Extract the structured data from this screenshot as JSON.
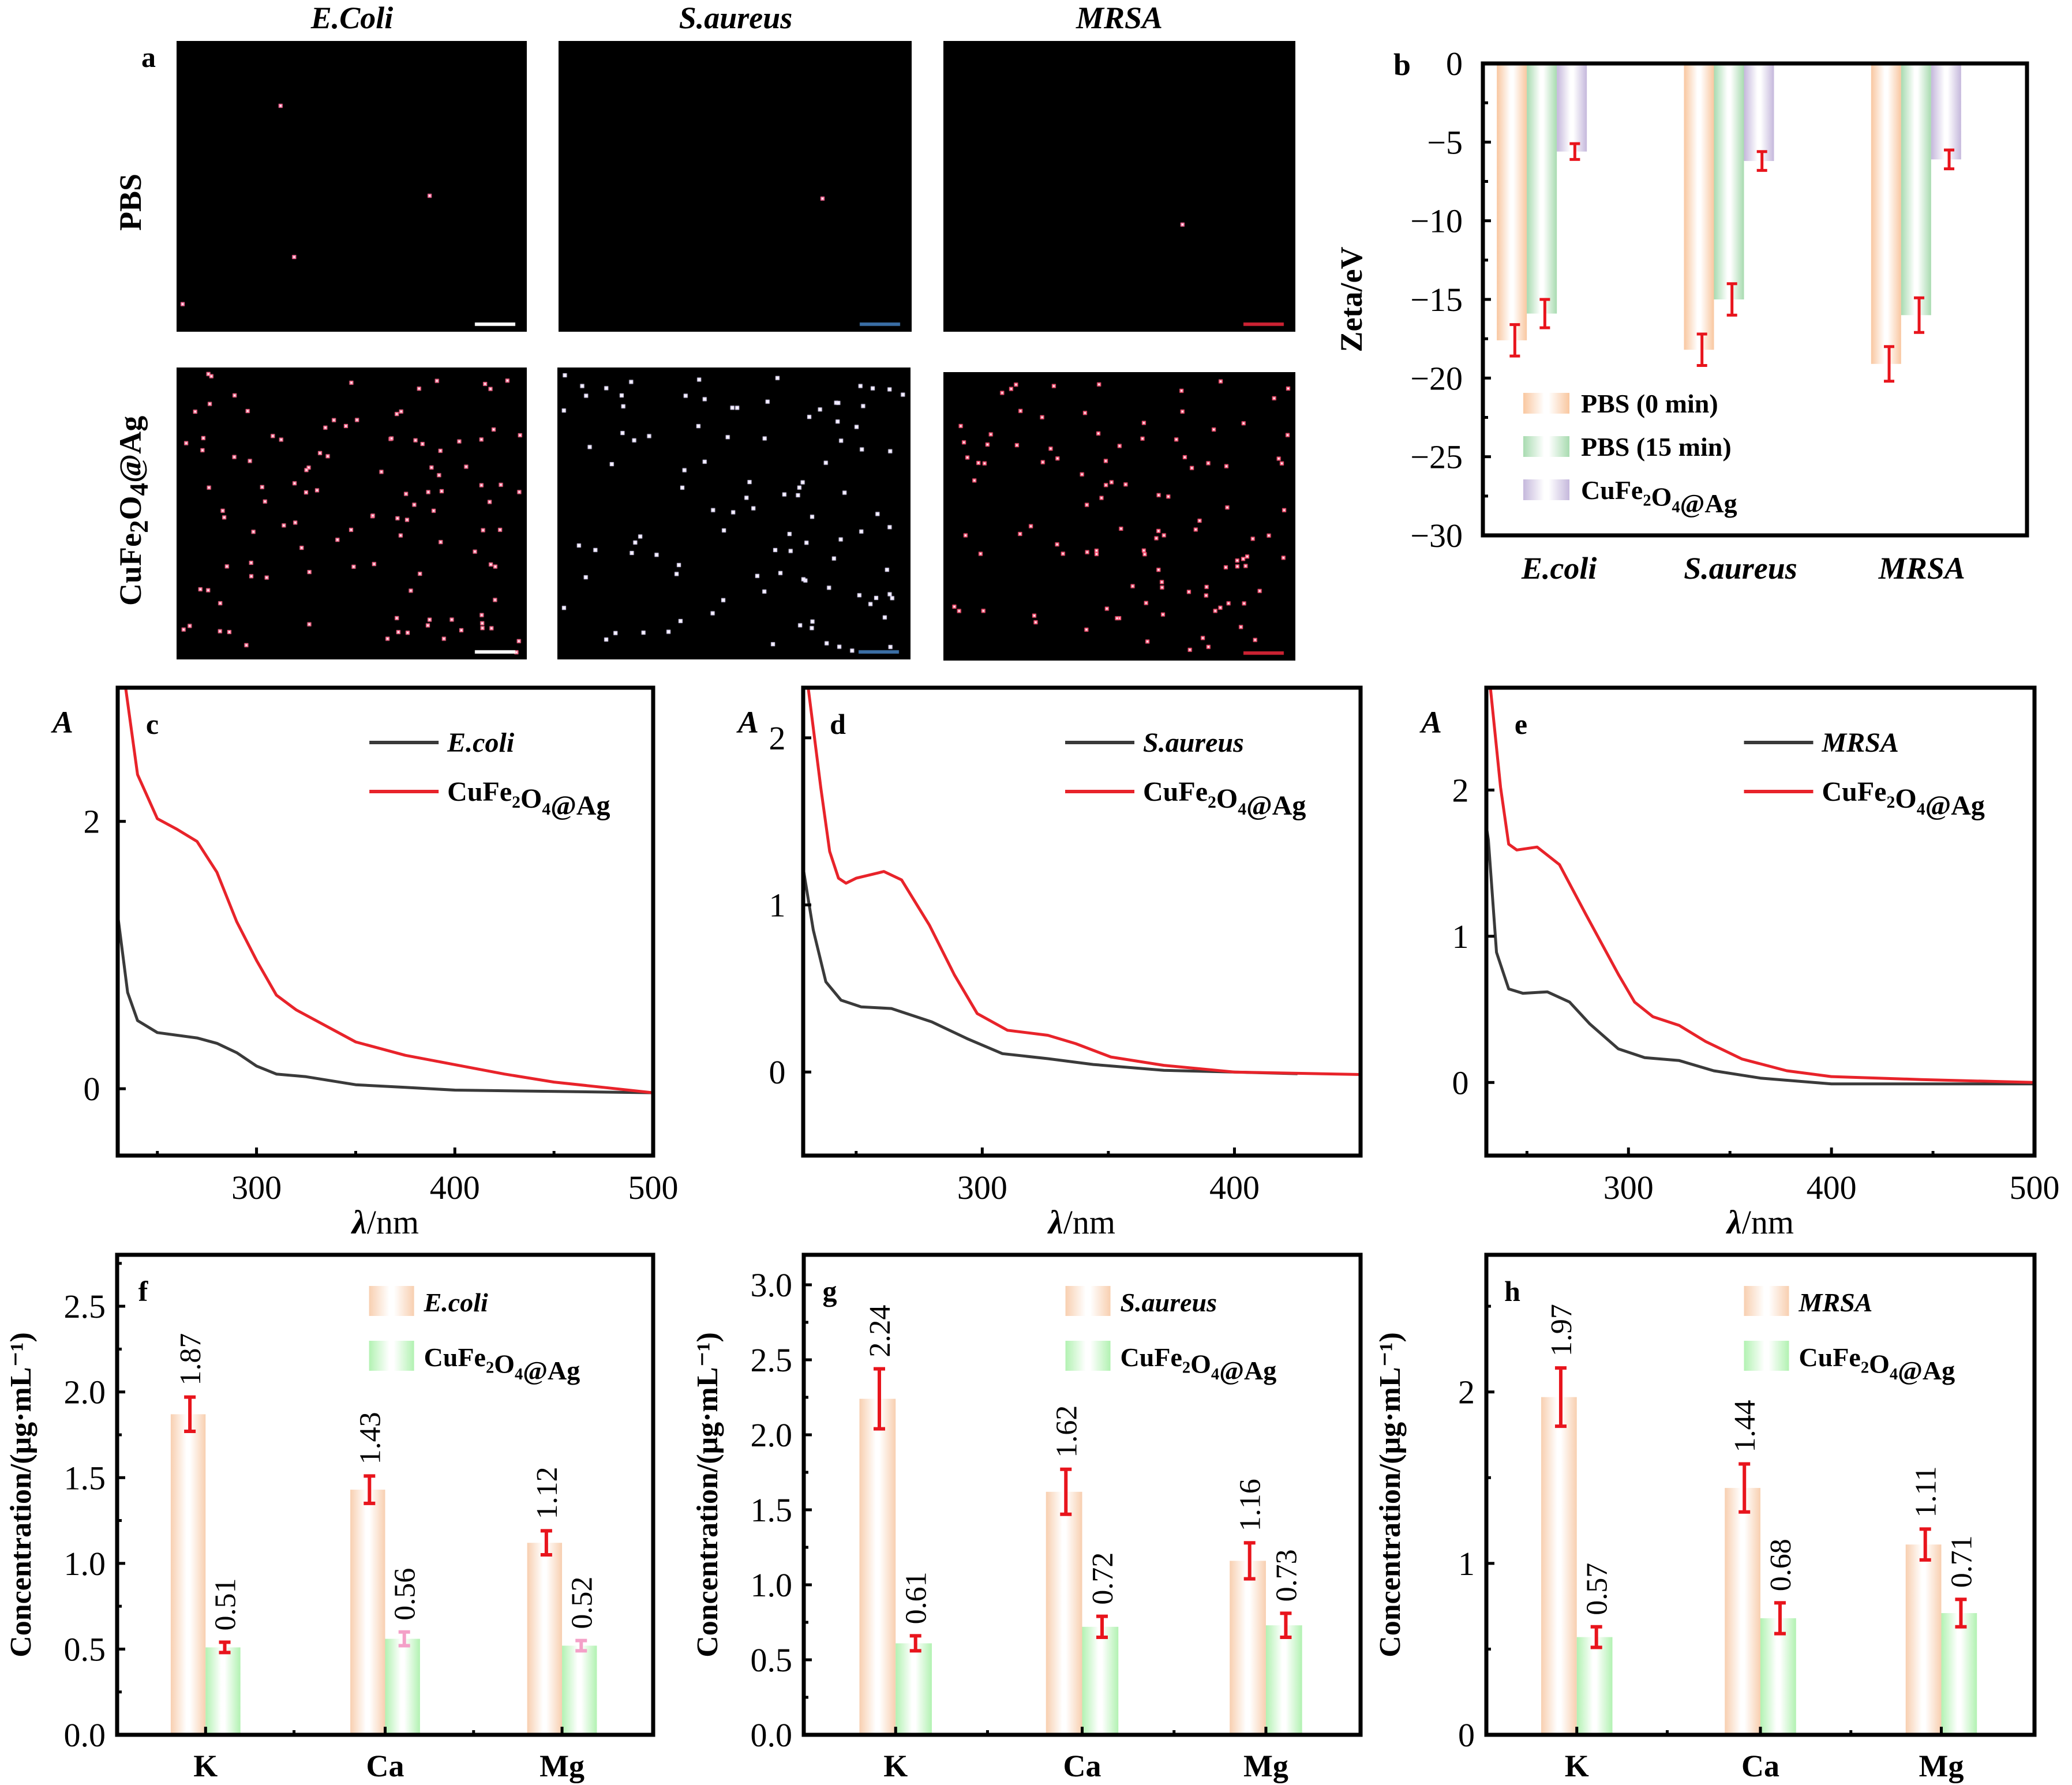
{
  "panel_a": {
    "label": "a",
    "columns": [
      "E.Coli",
      "S.aureus",
      "MRSA"
    ],
    "rows": [
      "PBS",
      "CuFe2O4@Ag"
    ],
    "row_label_html": [
      "PBS",
      "CuFe<sub>2</sub>O<sub>4</sub>@Ag"
    ],
    "cell_density": [
      [
        4,
        1,
        1
      ],
      [
        110,
        100,
        105
      ]
    ],
    "cell_colors": [
      [
        "#ff6b9b",
        "#ff6b9b",
        "#ff6b9b"
      ],
      [
        "#ff6b8f",
        "#e8e0ff",
        "#ff5577"
      ]
    ],
    "scale_bar_color": [
      "#ffffff",
      "#3a6ea5",
      "#cc2233"
    ]
  },
  "chart_data": [
    {
      "panel": "b",
      "type": "bar",
      "title": "",
      "xlabel": "",
      "ylabel": "Zeta/eV",
      "ylim": [
        -30,
        0
      ],
      "yticks": [
        0,
        -5,
        -10,
        -15,
        -20,
        -25,
        -30
      ],
      "ytick_labels": [
        "0",
        "−5",
        "−10",
        "−15",
        "−20",
        "−25",
        "−30"
      ],
      "categories": [
        "E.coli",
        "S.aureus",
        "MRSA"
      ],
      "series": [
        {
          "name": "PBS (0 min)",
          "color": "#f9c7a0",
          "values": [
            -17.6,
            -18.2,
            -19.1
          ],
          "err": [
            1.0,
            1.0,
            1.1
          ]
        },
        {
          "name": "PBS (15 min)",
          "color": "#a8dbb0",
          "values": [
            -15.9,
            -15.0,
            -16.0
          ],
          "err": [
            0.9,
            1.0,
            1.1
          ]
        },
        {
          "name": "CuFe2O4@Ag",
          "color": "#c5b8dc",
          "values": [
            -5.6,
            -6.2,
            -6.1
          ],
          "err": [
            0.5,
            0.6,
            0.6
          ]
        }
      ],
      "legend": "bottom-left",
      "error_color": "#e8141c"
    },
    {
      "panel": "c",
      "type": "line",
      "xlabel": "λ/nm",
      "ylabel": "A",
      "xlim": [
        230,
        500
      ],
      "ylim": [
        -0.5,
        3.0
      ],
      "xticks": [
        300,
        400,
        500
      ],
      "yticks": [
        0,
        2
      ],
      "legend": "top-right",
      "series": [
        {
          "name": "E.coli",
          "color": "#3a3a3a",
          "x": [
            230,
            235,
            240,
            250,
            270,
            280,
            290,
            300,
            310,
            325,
            350,
            375,
            400,
            450,
            500
          ],
          "y": [
            1.3,
            0.72,
            0.51,
            0.42,
            0.38,
            0.34,
            0.27,
            0.17,
            0.11,
            0.09,
            0.03,
            0.01,
            -0.01,
            -0.02,
            -0.03
          ]
        },
        {
          "name": "CuFe2O4@Ag",
          "color": "#e8232a",
          "x": [
            234,
            240,
            250,
            260,
            270,
            280,
            290,
            300,
            310,
            320,
            340,
            350,
            375,
            400,
            425,
            450,
            475,
            500
          ],
          "y": [
            3.0,
            2.35,
            2.02,
            1.94,
            1.85,
            1.62,
            1.25,
            0.96,
            0.7,
            0.59,
            0.43,
            0.35,
            0.25,
            0.18,
            0.11,
            0.05,
            0.01,
            -0.03
          ]
        }
      ]
    },
    {
      "panel": "d",
      "type": "line",
      "xlabel": "λ/nm",
      "ylabel": "A",
      "xlim": [
        229,
        450
      ],
      "ylim": [
        -0.5,
        2.3
      ],
      "xticks": [
        300,
        400
      ],
      "yticks": [
        0,
        1,
        2
      ],
      "legend": "top-right",
      "series": [
        {
          "name": "S.aureus",
          "color": "#3a3a3a",
          "x": [
            229,
            233,
            238,
            244,
            252,
            264,
            280,
            294,
            308,
            326,
            344,
            372,
            400,
            425
          ],
          "y": [
            1.22,
            0.85,
            0.54,
            0.43,
            0.39,
            0.38,
            0.3,
            0.2,
            0.11,
            0.08,
            0.045,
            0.01,
            0.0,
            -0.01
          ]
        },
        {
          "name": "CuFe2O4@Ag",
          "color": "#e8232a",
          "x": [
            231,
            236,
            239.5,
            243,
            246,
            250,
            261,
            268,
            279,
            289,
            298,
            310,
            326,
            337,
            351,
            372,
            400,
            450
          ],
          "y": [
            2.3,
            1.7,
            1.32,
            1.16,
            1.13,
            1.16,
            1.2,
            1.15,
            0.88,
            0.58,
            0.35,
            0.25,
            0.22,
            0.17,
            0.09,
            0.04,
            0.0,
            -0.015
          ]
        }
      ]
    },
    {
      "panel": "e",
      "type": "line",
      "xlabel": "λ/nm",
      "ylabel": "A",
      "xlim": [
        230,
        500
      ],
      "ylim": [
        -0.5,
        2.7
      ],
      "xticks": [
        300,
        400,
        500
      ],
      "yticks": [
        0,
        1,
        2
      ],
      "legend": "top-right",
      "series": [
        {
          "name": "MRSA",
          "color": "#3a3a3a",
          "x": [
            230,
            231,
            235,
            241,
            248,
            260,
            271,
            281,
            295,
            308,
            325,
            342,
            365,
            400,
            500
          ],
          "y": [
            1.75,
            1.66,
            0.89,
            0.64,
            0.61,
            0.62,
            0.55,
            0.4,
            0.23,
            0.17,
            0.15,
            0.08,
            0.03,
            -0.01,
            -0.01
          ]
        },
        {
          "name": "CuFe2O4@Ag",
          "color": "#e8232a",
          "x": [
            232,
            237,
            241,
            245,
            255,
            266,
            279,
            295,
            303,
            312,
            325,
            338,
            356,
            378,
            400,
            444,
            500
          ],
          "y": [
            2.7,
            2.02,
            1.63,
            1.59,
            1.61,
            1.49,
            1.15,
            0.74,
            0.55,
            0.45,
            0.39,
            0.28,
            0.16,
            0.08,
            0.04,
            0.02,
            0.0
          ]
        }
      ]
    },
    {
      "panel": "f",
      "type": "bar",
      "ylabel": "Concentration/(μg·mL⁻¹)",
      "ylim": [
        0,
        2.8
      ],
      "yticks": [
        0.0,
        0.5,
        1.0,
        1.5,
        2.0,
        2.5
      ],
      "ytick_labels": [
        "0.0",
        "0.5",
        "1.0",
        "1.5",
        "2.0",
        "2.5"
      ],
      "categories": [
        "K",
        "Ca",
        "Mg"
      ],
      "legend": "top-right",
      "series": [
        {
          "name": "E.coli",
          "color": "#f8cfb0",
          "values": [
            1.87,
            1.43,
            1.12
          ],
          "labels": [
            "1.87",
            "1.43",
            "1.12"
          ],
          "err": [
            0.1,
            0.08,
            0.07
          ],
          "err_color": [
            "#e8141c",
            "#e8141c",
            "#e8141c"
          ]
        },
        {
          "name": "CuFe2O4@Ag",
          "color": "#b2f2b2",
          "values": [
            0.51,
            0.56,
            0.52
          ],
          "labels": [
            "0.51",
            "0.56",
            "0.52"
          ],
          "err": [
            0.03,
            0.04,
            0.03
          ],
          "err_color": [
            "#e8141c",
            "#f4a0c8",
            "#f4a0c8"
          ]
        }
      ]
    },
    {
      "panel": "g",
      "type": "bar",
      "ylabel": "Concentration/(μg·mL⁻¹)",
      "ylim": [
        0,
        3.2
      ],
      "yticks": [
        0.0,
        0.5,
        1.0,
        1.5,
        2.0,
        2.5,
        3.0
      ],
      "ytick_labels": [
        "0.0",
        "0.5",
        "1.0",
        "1.5",
        "2.0",
        "2.5",
        "3.0"
      ],
      "categories": [
        "K",
        "Ca",
        "Mg"
      ],
      "legend": "top-right",
      "series": [
        {
          "name": "S.aureus",
          "color": "#f8cfb0",
          "values": [
            2.24,
            1.62,
            1.16
          ],
          "labels": [
            "2.24",
            "1.62",
            "1.16"
          ],
          "err": [
            0.2,
            0.15,
            0.12
          ],
          "err_color": [
            "#e8141c",
            "#e8141c",
            "#e8141c"
          ]
        },
        {
          "name": "CuFe2O4@Ag",
          "color": "#b2f2b2",
          "values": [
            0.61,
            0.72,
            0.73
          ],
          "labels": [
            "0.61",
            "0.72",
            "0.73"
          ],
          "err": [
            0.05,
            0.07,
            0.08
          ],
          "err_color": [
            "#e8141c",
            "#e8141c",
            "#e8141c"
          ]
        }
      ]
    },
    {
      "panel": "h",
      "type": "bar",
      "ylabel": "Concentration/(μg·mL⁻¹)",
      "ylim": [
        0,
        2.8
      ],
      "yticks": [
        0,
        1,
        2
      ],
      "ytick_labels": [
        "0",
        "1",
        "2"
      ],
      "categories": [
        "K",
        "Ca",
        "Mg"
      ],
      "legend": "top-right",
      "series": [
        {
          "name": "MRSA",
          "color": "#f8cfb0",
          "values": [
            1.97,
            1.44,
            1.11
          ],
          "labels": [
            "1.97",
            "1.44",
            "1.11"
          ],
          "err": [
            0.17,
            0.14,
            0.09
          ],
          "err_color": [
            "#e8141c",
            "#e8141c",
            "#e8141c"
          ]
        },
        {
          "name": "CuFe2O4@Ag",
          "color": "#b2f2b2",
          "values": [
            0.57,
            0.68,
            0.71
          ],
          "labels": [
            "0.57",
            "0.68",
            "0.71"
          ],
          "err": [
            0.06,
            0.09,
            0.08
          ],
          "err_color": [
            "#e8141c",
            "#e8141c",
            "#e8141c"
          ]
        }
      ]
    }
  ]
}
